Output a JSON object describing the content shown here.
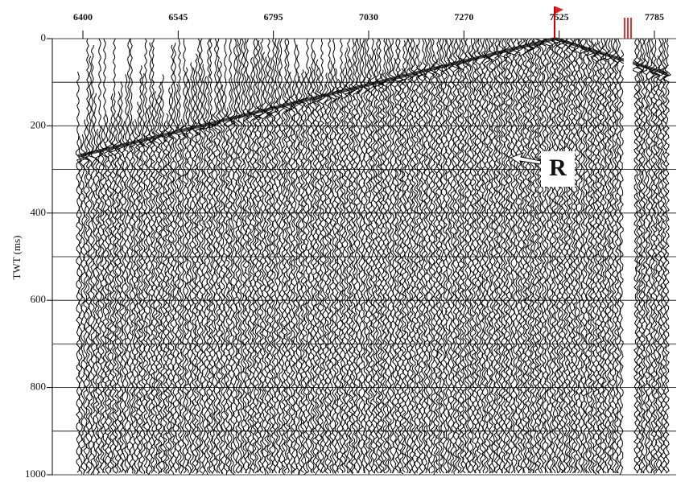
{
  "chart_data": {
    "type": "seismic",
    "categories": [
      "6400",
      "6545",
      "6795",
      "7030",
      "7270",
      "7525",
      "7785"
    ],
    "ylabel": "TWT (ms)",
    "ylim": [
      0,
      1000
    ],
    "yticks": [
      0,
      200,
      400,
      600,
      800,
      1000
    ],
    "minor_yticks": [
      100,
      300,
      500,
      700,
      900
    ],
    "grid": true,
    "annotation": "R"
  }
}
